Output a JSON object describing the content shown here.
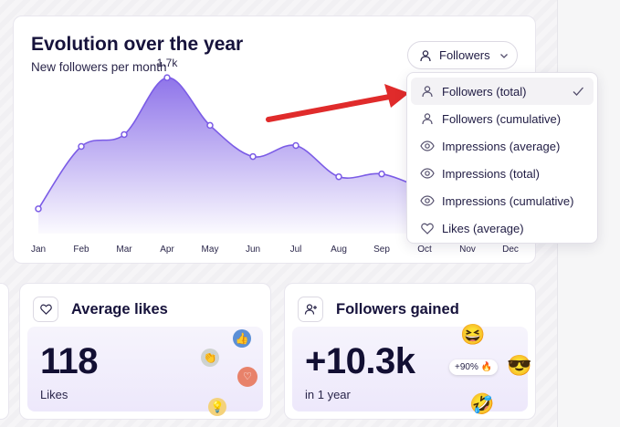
{
  "chart_card": {
    "title": "Evolution over the year",
    "subtitle": "New followers per month",
    "dropdown_label": "Followers",
    "peak_label": "1.7k"
  },
  "menu": {
    "items": [
      {
        "label": "Followers (total)",
        "icon": "user-icon",
        "selected": true
      },
      {
        "label": "Followers (cumulative)",
        "icon": "user-icon",
        "selected": false
      },
      {
        "label": "Impressions (average)",
        "icon": "eye-icon",
        "selected": false
      },
      {
        "label": "Impressions (total)",
        "icon": "eye-icon",
        "selected": false
      },
      {
        "label": "Impressions (cumulative)",
        "icon": "eye-icon",
        "selected": false
      },
      {
        "label": "Likes (average)",
        "icon": "heart-icon",
        "selected": false
      }
    ]
  },
  "chart_data": {
    "type": "area",
    "categories": [
      "Jan",
      "Feb",
      "Mar",
      "Apr",
      "May",
      "Jun",
      "Jul",
      "Aug",
      "Sep",
      "Oct",
      "Nov",
      "Dec"
    ],
    "values": [
      270,
      950,
      1080,
      1700,
      1180,
      840,
      960,
      620,
      650,
      480,
      null,
      null
    ],
    "title": "Evolution over the year",
    "subtitle": "New followers per month",
    "ylim": [
      0,
      2000
    ],
    "color": "#7b5ce6",
    "annotations": [
      {
        "category": "Apr",
        "label": "1.7k"
      }
    ]
  },
  "likes_card": {
    "title": "Average likes",
    "value": "118",
    "caption": "Likes"
  },
  "followers_card": {
    "title": "Followers gained",
    "value": "+10.3k",
    "caption": "in 1 year",
    "badge": "+90% 🔥"
  },
  "colors": {
    "accent": "#7b5ce6",
    "arrow": "#e02b2b",
    "text": "#16123b"
  }
}
